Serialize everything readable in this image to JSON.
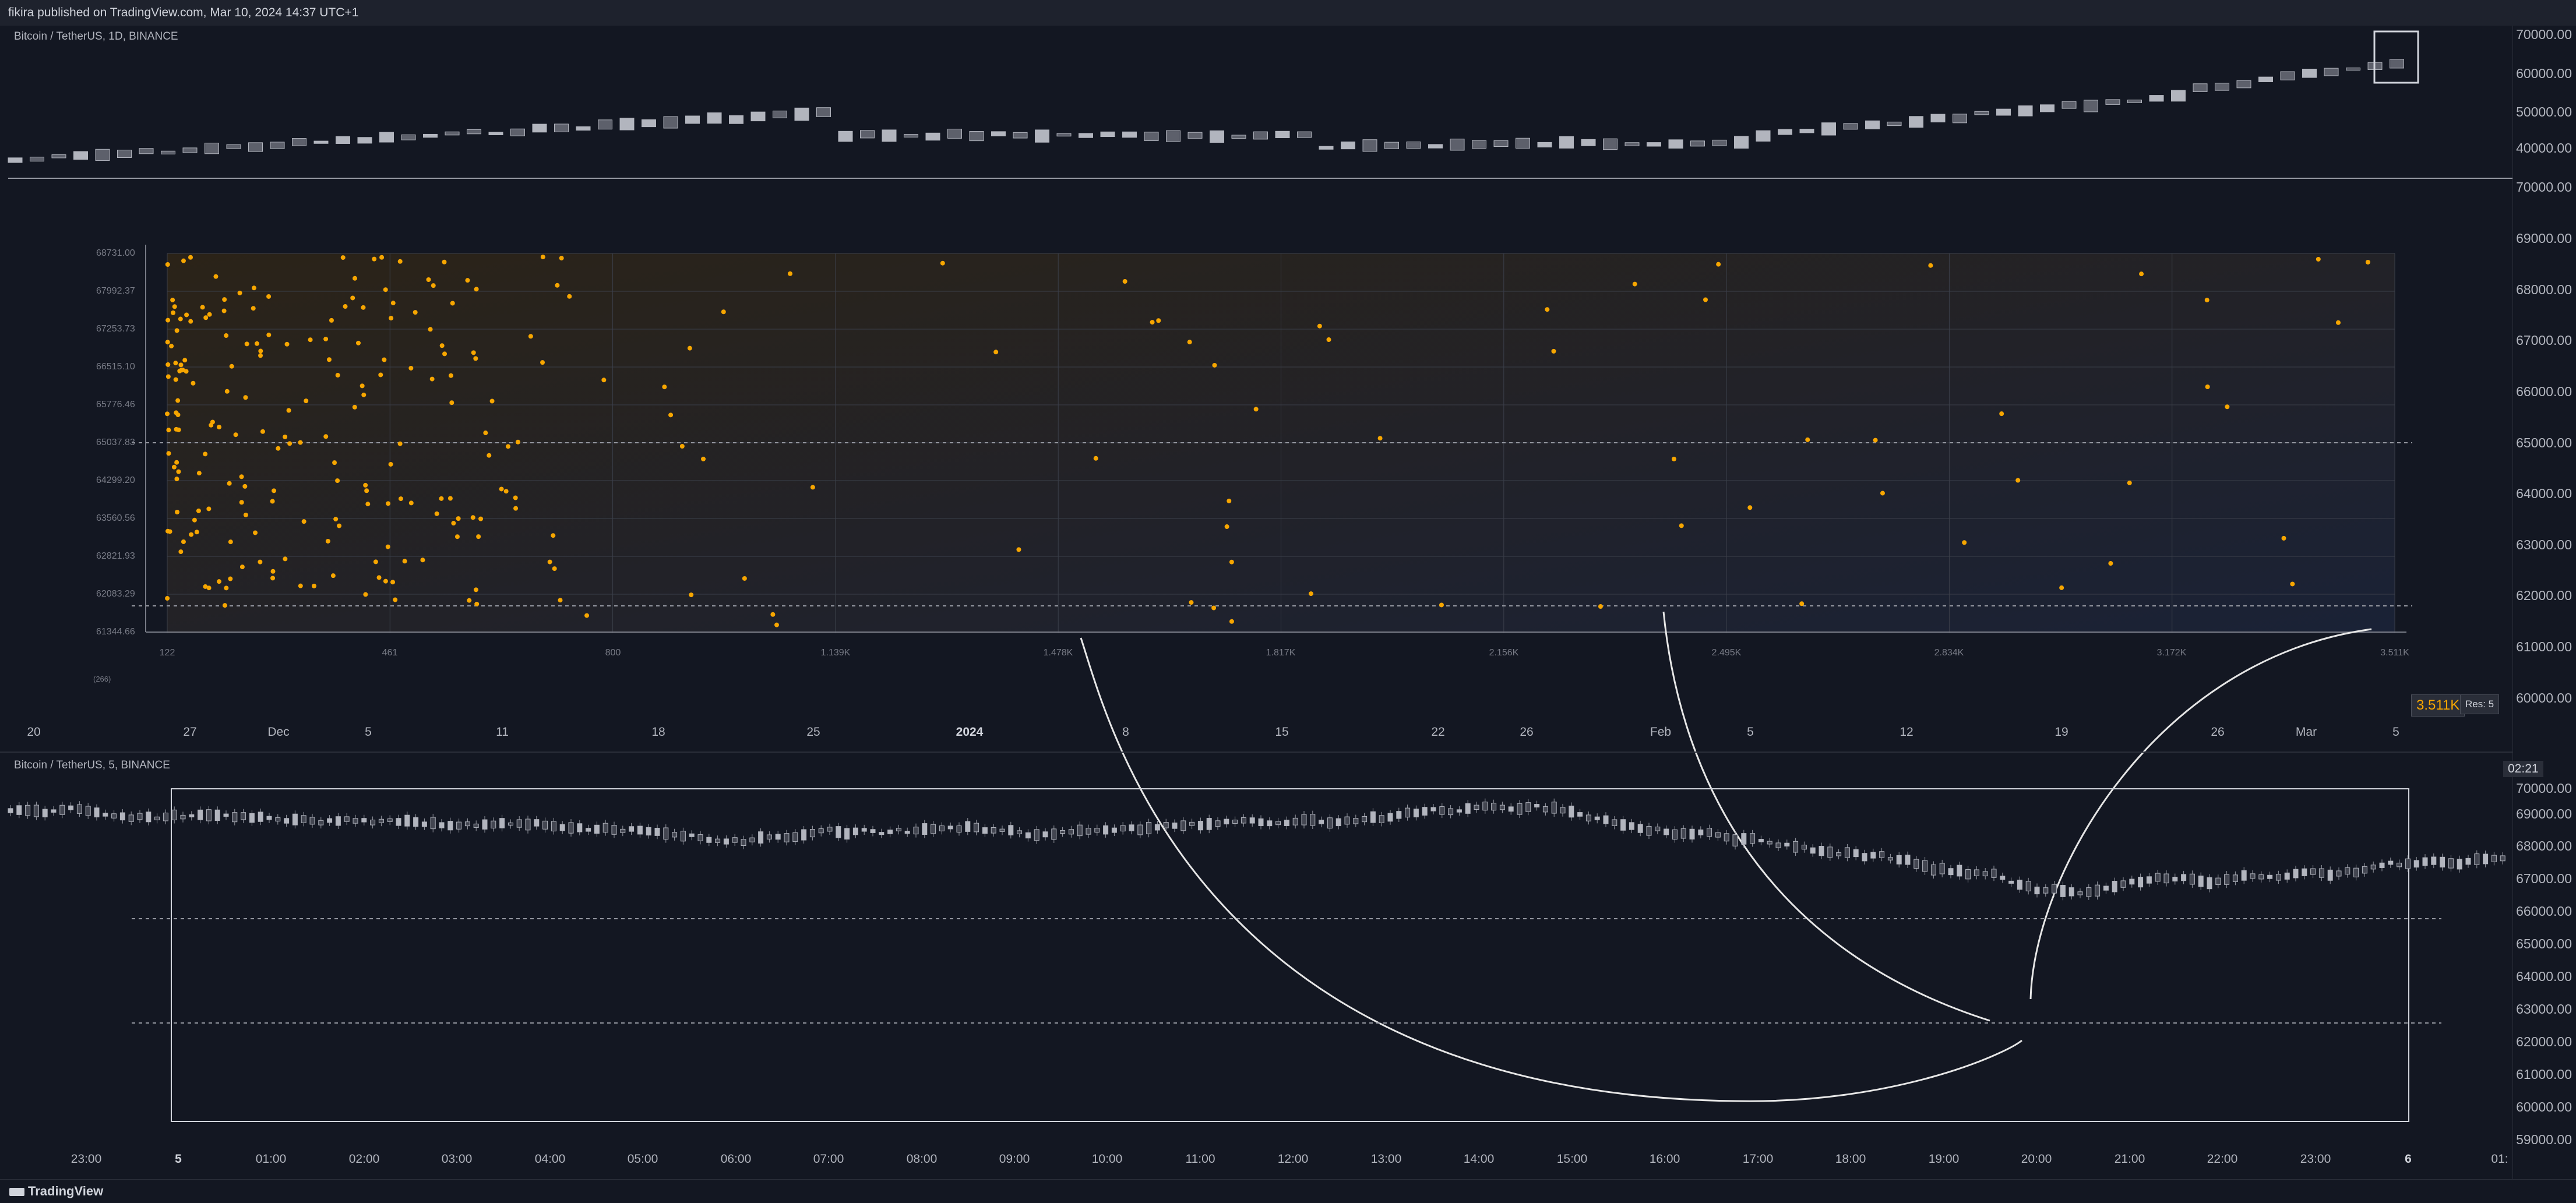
{
  "header": {
    "published": "fikira published on TradingView.com, Mar 10, 2024 14:37 UTC+1"
  },
  "top_pane": {
    "symbol_label": "Bitcoin / TetherUS, 1D, BINANCE",
    "y_ticks": [
      "70000.00",
      "69000.00",
      "68000.00",
      "67000.00",
      "66000.00",
      "65000.00",
      "64000.00",
      "63000.00",
      "62000.00",
      "61000.00",
      "60000.00",
      "50000.00",
      "40000.00"
    ],
    "x_ticks": [
      "20",
      "27",
      "Dec",
      "5",
      "11",
      "18",
      "25",
      "2024",
      "8",
      "15",
      "22",
      "26",
      "Feb",
      "5",
      "12",
      "19",
      "26",
      "Mar",
      "5"
    ]
  },
  "inset": {
    "y_ticks": [
      "68731.00",
      "67992.37",
      "67253.73",
      "66515.10",
      "65776.46",
      "65037.83",
      "64299.20",
      "63560.56",
      "62821.93",
      "62083.29",
      "61344.66"
    ],
    "x_ticks": [
      "122",
      "461",
      "800",
      "1.139K",
      "1.478K",
      "1.817K",
      "2.156K",
      "2.495K",
      "2.834K",
      "3.172K",
      "3.511K"
    ],
    "corner_label": "(266)",
    "value_badge": "3.511K",
    "res_badge": "Res: 5"
  },
  "bottom_pane": {
    "symbol_label": "Bitcoin / TetherUS, 5, BINANCE",
    "time_badge": "02:21",
    "y_ticks": [
      "69000.00",
      "68000.00",
      "67000.00",
      "66000.00",
      "65000.00",
      "64000.00",
      "63000.00",
      "62000.00",
      "61000.00",
      "60000.00",
      "59000.00"
    ],
    "x_ticks": [
      "23:00",
      "5",
      "01:00",
      "02:00",
      "03:00",
      "04:00",
      "05:00",
      "06:00",
      "07:00",
      "08:00",
      "09:00",
      "10:00",
      "11:00",
      "12:00",
      "13:00",
      "14:00",
      "15:00",
      "16:00",
      "17:00",
      "18:00",
      "19:00",
      "20:00",
      "21:00",
      "22:00",
      "23:00",
      "6",
      "01:"
    ]
  },
  "footer": {
    "brand": "TradingView"
  },
  "colors": {
    "background": "#131722",
    "candle": "#b2b5be",
    "dot": "#f7a600",
    "grid": "#2a2e39"
  }
}
